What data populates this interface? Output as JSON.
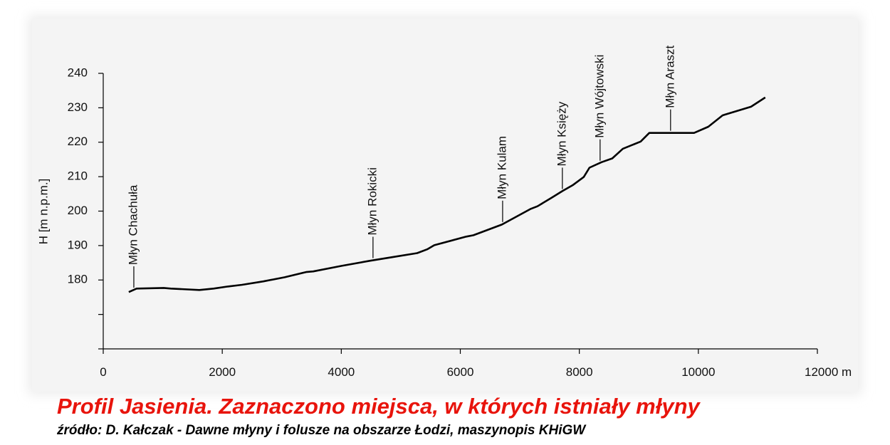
{
  "chart_data": {
    "type": "line",
    "title": "Profil Jasienia. Zaznaczono miejsca, w których istniały młyny",
    "subtitle": "źródło: D. Kałczak - Dawne młyny i folusze na obszarze Łodzi, maszynopis KHiGW",
    "y_label": "H [m  n.p.m.]",
    "color": "#000000",
    "x": [
      430,
      560,
      1017,
      1136,
      1615,
      1854,
      2093,
      2333,
      2691,
      3050,
      3409,
      3529,
      4007,
      4486,
      4845,
      5275,
      5443,
      5562,
      6100,
      6220,
      6699,
      7177,
      7297,
      7536,
      7715,
      7895,
      8074,
      8170,
      8373,
      8553,
      8732,
      9031,
      9175,
      9928,
      10167,
      10407,
      10885,
      11124
    ],
    "values": [
      176.5,
      177.5,
      177.7,
      177.5,
      177.1,
      177.5,
      178.1,
      178.6,
      179.6,
      180.8,
      182.3,
      182.5,
      184.1,
      185.6,
      186.6,
      187.8,
      188.9,
      190.1,
      192.6,
      193.0,
      196.1,
      200.6,
      201.4,
      203.9,
      205.8,
      207.6,
      209.9,
      212.6,
      214.2,
      215.3,
      218.1,
      220.2,
      222.7,
      222.7,
      224.5,
      227.8,
      230.3,
      233.0
    ],
    "annotations": [
      {
        "text": "Młyn Chachuła",
        "x": 514
      },
      {
        "text": "Młyn Rokicki",
        "x": 4533
      },
      {
        "text": "Młyn Kulam",
        "x": 6711
      },
      {
        "text": "Młyn Księży",
        "x": 7715
      },
      {
        "text": "Młyn Wójtowski",
        "x": 8349
      },
      {
        "text": "Młyn Araszt",
        "x": 9533
      }
    ],
    "xlim": [
      0,
      12000
    ],
    "xticks": [
      0,
      2000,
      4000,
      6000,
      8000,
      10000,
      {
        "value": 12000,
        "label": "12000 m"
      }
    ],
    "ylim": [
      160,
      240
    ],
    "yticks": [
      {
        "value": 160,
        "label": null
      },
      {
        "value": 170,
        "label": null
      },
      180,
      190,
      200,
      210,
      220,
      230,
      240
    ]
  }
}
